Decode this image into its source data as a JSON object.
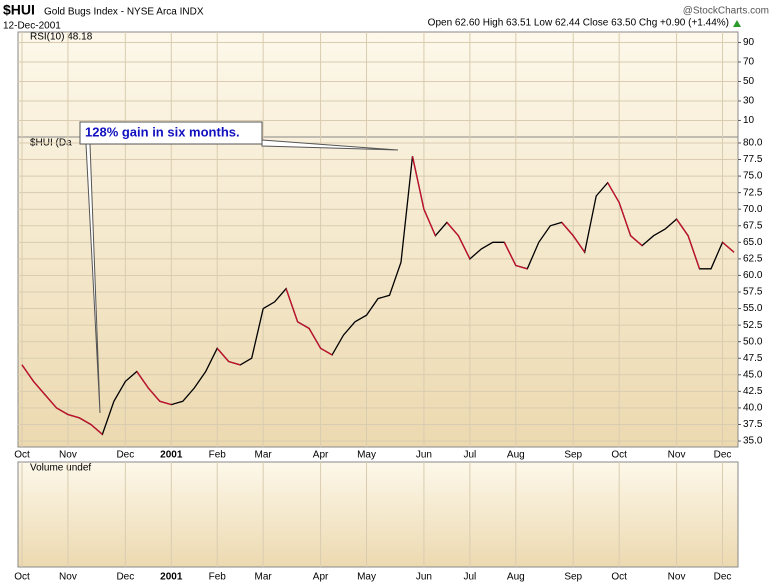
{
  "chart_data": [
    {
      "type": "line",
      "title": "$HUI",
      "subtitle": "Gold Bugs Index - NYSE Arca INDX",
      "date": "12-Dec-2001",
      "quote": "Open 62.60 High 63.51 Low 62.44 Close 63.50 Chg +0.90 (+1.44%)",
      "source": "@StockCharts.com",
      "legend": "$HUI (Da",
      "annotation": "128% gain in six months.",
      "categories": [
        "Oct",
        null,
        null,
        null,
        "Nov",
        null,
        null,
        null,
        null,
        "Dec",
        null,
        null,
        null,
        "2001",
        null,
        null,
        null,
        "Feb",
        null,
        null,
        null,
        "Mar",
        null,
        null,
        null,
        null,
        "Apr",
        null,
        null,
        null,
        "May",
        null,
        null,
        null,
        null,
        "Jun",
        null,
        null,
        null,
        "Jul",
        null,
        null,
        null,
        "Aug",
        null,
        null,
        null,
        null,
        "Sep",
        null,
        null,
        null,
        "Oct",
        null,
        null,
        null,
        null,
        "Nov",
        null,
        null,
        null,
        "Dec",
        null
      ],
      "series": [
        {
          "name": "$HUI",
          "color": "#000000",
          "values": [
            46.5,
            44,
            42,
            40,
            39,
            38.5,
            37.5,
            36,
            41,
            44,
            45.5,
            43,
            41,
            40.5,
            41,
            43,
            45.5,
            49,
            47,
            46.5,
            47.5,
            55,
            56,
            58,
            53,
            52,
            49,
            48,
            51,
            53,
            54,
            56.5,
            57,
            62,
            78,
            70,
            66,
            68,
            66,
            62.5,
            64,
            65,
            65,
            61.5,
            61,
            65,
            67.5,
            68,
            66,
            63.5,
            72,
            74,
            71,
            66,
            64.5,
            66,
            67,
            68.5,
            66,
            61,
            61,
            65,
            63.5
          ]
        }
      ],
      "ylim": [
        34.1,
        80.9
      ],
      "yticks": [
        {
          "value": 35,
          "label": "35.0"
        },
        {
          "value": 37.5,
          "label": "37.5"
        },
        {
          "value": 40,
          "label": "40.0"
        },
        {
          "value": 42.5,
          "label": "42.5"
        },
        {
          "value": 45,
          "label": "45.0"
        },
        {
          "value": 47.5,
          "label": "47.5"
        },
        {
          "value": 50,
          "label": "50.0"
        },
        {
          "value": 52.5,
          "label": "52.5"
        },
        {
          "value": 55,
          "label": "55.0"
        },
        {
          "value": 57.5,
          "label": "57.5"
        },
        {
          "value": 60,
          "label": "60.0"
        },
        {
          "value": 62.5,
          "label": "62.5"
        },
        {
          "value": 65,
          "label": "65.0"
        },
        {
          "value": 67.5,
          "label": "67.5"
        },
        {
          "value": 70,
          "label": "70.0"
        },
        {
          "value": 72.5,
          "label": "72.5"
        },
        {
          "value": 75,
          "label": "75.0"
        },
        {
          "value": 77.5,
          "label": "77.5"
        },
        {
          "value": 80,
          "label": "80.0"
        }
      ],
      "grid": true
    },
    {
      "type": "line",
      "title": "RSI(10) 48.18",
      "ylim": [
        -7,
        100.8
      ],
      "yticks": [
        10,
        30,
        50,
        70,
        90
      ],
      "grid": true
    },
    {
      "type": "bar",
      "title": "Volume undef"
    }
  ]
}
